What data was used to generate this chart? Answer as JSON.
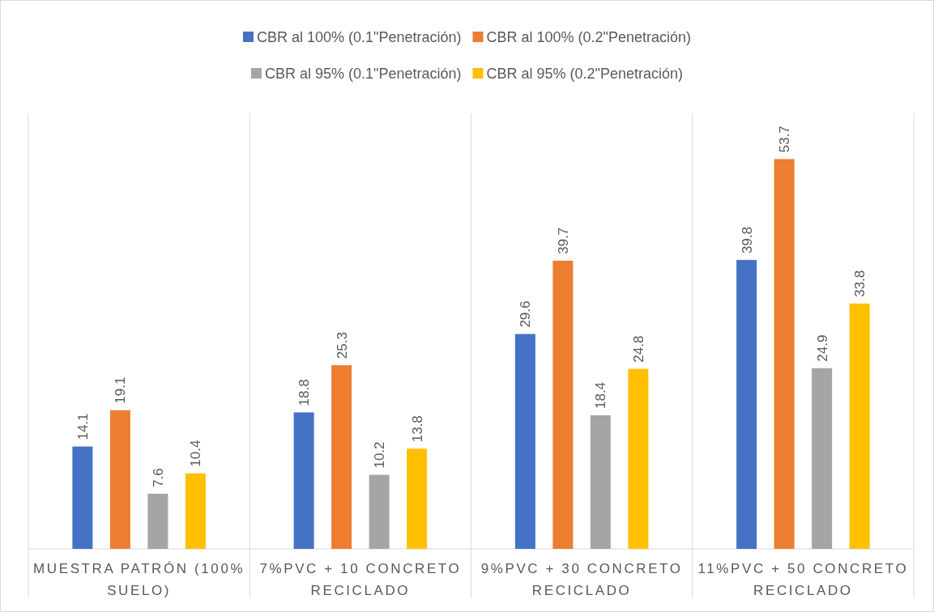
{
  "chart_data": {
    "type": "bar",
    "categories": [
      "MUESTRA PATRÓN (100% SUELO)",
      "7%PVC + 10 CONCRETO RECICLADO",
      "9%PVC + 30 CONCRETO RECICLADO",
      "11%PVC + 50 CONCRETO RECICLADO"
    ],
    "series": [
      {
        "name": "CBR al 100% (0.1\"Penetración)",
        "color": "#4472c4",
        "values": [
          14.1,
          18.8,
          29.6,
          39.8
        ]
      },
      {
        "name": "CBR al 100% (0.2\"Penetración)",
        "color": "#ed7d31",
        "values": [
          19.1,
          25.3,
          39.7,
          53.7
        ]
      },
      {
        "name": "CBR al 95% (0.1\"Penetración)",
        "color": "#a5a5a5",
        "values": [
          7.6,
          10.2,
          18.4,
          24.9
        ]
      },
      {
        "name": "CBR al 95% (0.2\"Penetración)",
        "color": "#ffc000",
        "values": [
          10.4,
          13.8,
          24.8,
          33.8
        ]
      }
    ],
    "ylim": [
      0,
      60
    ],
    "tick_labels": "x",
    "data_labels": true,
    "grid": "x",
    "legend": "top"
  }
}
